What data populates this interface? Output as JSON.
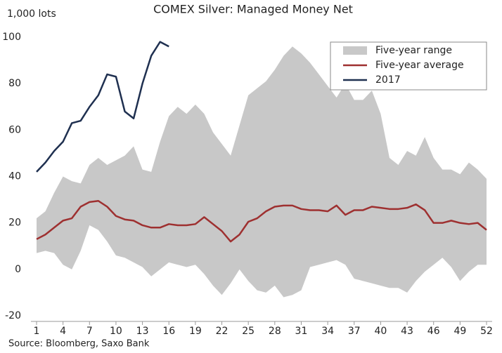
{
  "chart_data": {
    "type": "band-line",
    "title": "COMEX Silver:  Managed Money Net",
    "y_label": "1,000 lots",
    "source": "Source: Bloomberg, Saxo Bank",
    "x": [
      1,
      2,
      3,
      4,
      5,
      6,
      7,
      8,
      9,
      10,
      11,
      12,
      13,
      14,
      15,
      16,
      17,
      18,
      19,
      20,
      21,
      22,
      23,
      24,
      25,
      26,
      27,
      28,
      29,
      30,
      31,
      32,
      33,
      34,
      35,
      36,
      37,
      38,
      39,
      40,
      41,
      42,
      43,
      44,
      45,
      46,
      47,
      48,
      49,
      50,
      51,
      52
    ],
    "xlim": [
      1,
      52
    ],
    "xticks": [
      1,
      4,
      7,
      10,
      13,
      16,
      19,
      22,
      25,
      28,
      31,
      34,
      37,
      40,
      43,
      46,
      49,
      52
    ],
    "ylim": [
      -20,
      100
    ],
    "yticks": [
      -20,
      0,
      20,
      40,
      60,
      80,
      100
    ],
    "grid": false,
    "legend": "top-right",
    "series": [
      {
        "name": "Five-year range",
        "color": "#c8c8c8",
        "high": [
          22,
          25,
          33,
          40,
          38,
          37,
          45,
          48,
          45,
          47,
          49,
          53,
          43,
          42,
          55,
          66,
          70,
          67,
          71,
          67,
          59,
          54,
          49,
          62,
          75,
          78,
          81,
          86,
          92,
          96,
          93,
          89,
          84,
          79,
          74,
          80,
          73,
          73,
          77,
          67,
          48,
          45,
          51,
          49,
          57,
          48,
          43,
          43,
          41,
          46,
          43,
          39
        ],
        "low": [
          7,
          8,
          7,
          2,
          0,
          8,
          19,
          17,
          12,
          6,
          5,
          3,
          1,
          -3,
          0,
          3,
          2,
          1,
          2,
          -2,
          -7,
          -11,
          -6,
          0,
          -5,
          -9,
          -10,
          -7,
          -12,
          -11,
          -9,
          1,
          2,
          3,
          4,
          2,
          -4,
          -5,
          -6,
          -7,
          -8,
          -8,
          -10,
          -5,
          -1,
          2,
          5,
          1,
          -5,
          -1,
          2,
          2
        ]
      },
      {
        "name": "Five-year average",
        "color": "#9e3030",
        "values": [
          13,
          15,
          18,
          21,
          22,
          27,
          29,
          29.5,
          27,
          23,
          21.5,
          21,
          19,
          18,
          18,
          19.5,
          19,
          19,
          19.5,
          22.5,
          19.5,
          16.5,
          12,
          15,
          20.5,
          22,
          25,
          27,
          27.5,
          27.5,
          26,
          25.5,
          25.5,
          25,
          27.5,
          23.5,
          25.5,
          25.5,
          27,
          26.5,
          26,
          26,
          26.5,
          28,
          25.5,
          20,
          20,
          21,
          20,
          19.5,
          20,
          17
        ]
      },
      {
        "name": "2017",
        "color": "#1f3050",
        "values": [
          42,
          46,
          51,
          55,
          63,
          64,
          70,
          75,
          84,
          83,
          68,
          65,
          80,
          92,
          98,
          96,
          null,
          null,
          null,
          null,
          null,
          null,
          null,
          null,
          null,
          null,
          null,
          null,
          null,
          null,
          null,
          null,
          null,
          null,
          null,
          null,
          null,
          null,
          null,
          null,
          null,
          null,
          null,
          null,
          null,
          null,
          null,
          null,
          null,
          null,
          null,
          null
        ]
      }
    ]
  }
}
